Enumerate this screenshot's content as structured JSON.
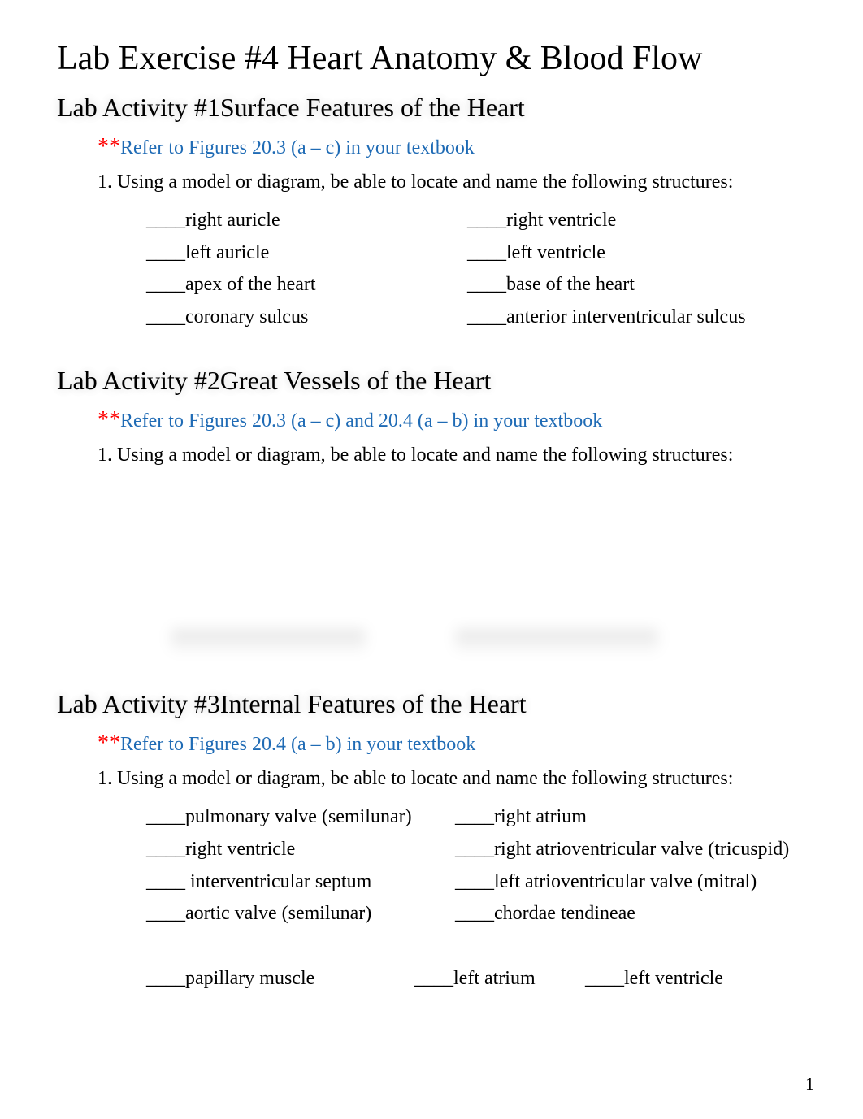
{
  "title": "Lab Exercise #4 Heart Anatomy & Blood Flow",
  "pageNumber": "1",
  "blank": "____",
  "activities": [
    {
      "heading": "Lab Activity #1Surface Features of the Heart",
      "refer": "Refer to Figures 20.3 (a – c) in your textbook",
      "instruction": "1. Using a model or diagram, be able to locate and name the following structures:",
      "rows": [
        {
          "left": "right auricle",
          "right": "right ventricle"
        },
        {
          "left": "left auricle",
          "right": "left ventricle"
        },
        {
          "left": "apex of the heart",
          "right": "base of the heart"
        },
        {
          "left": "coronary sulcus",
          "right": "anterior interventricular sulcus"
        }
      ]
    },
    {
      "heading": "Lab Activity #2Great Vessels of the Heart",
      "refer": "Refer to Figures 20.3 (a – c) and 20.4 (a – b) in your textbook",
      "instruction": "1. Using a model or diagram, be able to locate and name the following structures:"
    },
    {
      "heading": "Lab Activity #3Internal Features of the Heart",
      "refer": "Refer to Figures 20.4 (a – b) in your textbook",
      "instruction": "1. Using a model or diagram, be able to locate and name the following structures:",
      "rows": [
        {
          "left": "pulmonary valve (semilunar)",
          "right": "right atrium"
        },
        {
          "left": "right ventricle",
          "right": "right atrioventricular valve (tricuspid)"
        },
        {
          "left": " interventricular septum",
          "right": "left atrioventricular valve (mitral)"
        },
        {
          "left": "aortic valve (semilunar)",
          "right": "chordae tendineae"
        }
      ],
      "lastRow": {
        "a": "papillary muscle",
        "b": "left atrium",
        "c": "left ventricle"
      }
    }
  ]
}
